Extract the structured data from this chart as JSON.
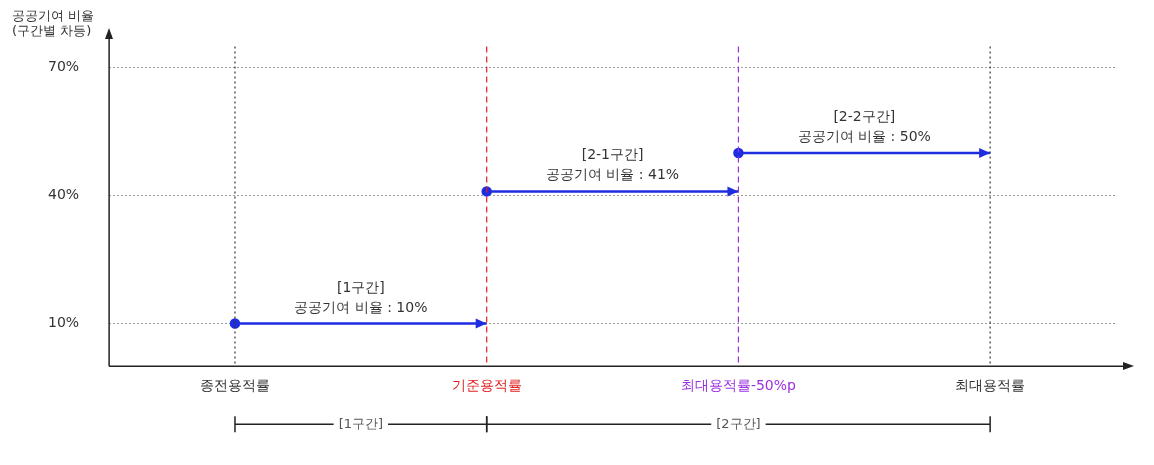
{
  "chart_data": {
    "type": "line",
    "ylabel": "공공기여 비율 (구간별 차등)",
    "categories": [
      "종전용적률",
      "기준용적률",
      "최대용적률-50%p",
      "최대용적률"
    ],
    "series": [
      {
        "name": "[1구간]",
        "color": "#1f2de0",
        "x": [
          "종전용적률",
          "기준용적률"
        ],
        "values": [
          10,
          10
        ]
      },
      {
        "name": "[2-1구간]",
        "color": "#1f2de0",
        "x": [
          "기준용적률",
          "최대용적률-50%p"
        ],
        "values": [
          41,
          41
        ]
      },
      {
        "name": "[2-2구간]",
        "color": "#1f2de0",
        "x": [
          "최대용적률-50%p",
          "최대용적률"
        ],
        "values": [
          50,
          50
        ]
      }
    ],
    "annotations": [
      {
        "text": "공공기여 비율 : 10%",
        "y": 10
      },
      {
        "text": "공공기여 비율 : 41%",
        "y": 41
      },
      {
        "text": "공공기여 비율 : 50%",
        "y": 50
      },
      "[1구간]",
      "[2구간]"
    ],
    "ylim": [
      0,
      75
    ],
    "yticks": [
      {
        "value": 10,
        "label": "10%"
      },
      {
        "value": 40,
        "label": "40%"
      },
      {
        "value": 70,
        "label": "70%"
      }
    ],
    "grid": "y",
    "legend": false,
    "marker": "circle",
    "ref_lines": [
      {
        "axis": "x",
        "value": "종전용적률",
        "color": "#333333",
        "line_style": "dotted"
      },
      {
        "axis": "x",
        "value": "기준용적률",
        "color": "#e02020",
        "line_style": "dashed"
      },
      {
        "axis": "x",
        "value": "최대용적률-50%p",
        "color": "#9b30e0",
        "line_style": "dashed"
      },
      {
        "axis": "x",
        "value": "최대용적률",
        "color": "#333333",
        "line_style": "dotted"
      }
    ]
  }
}
